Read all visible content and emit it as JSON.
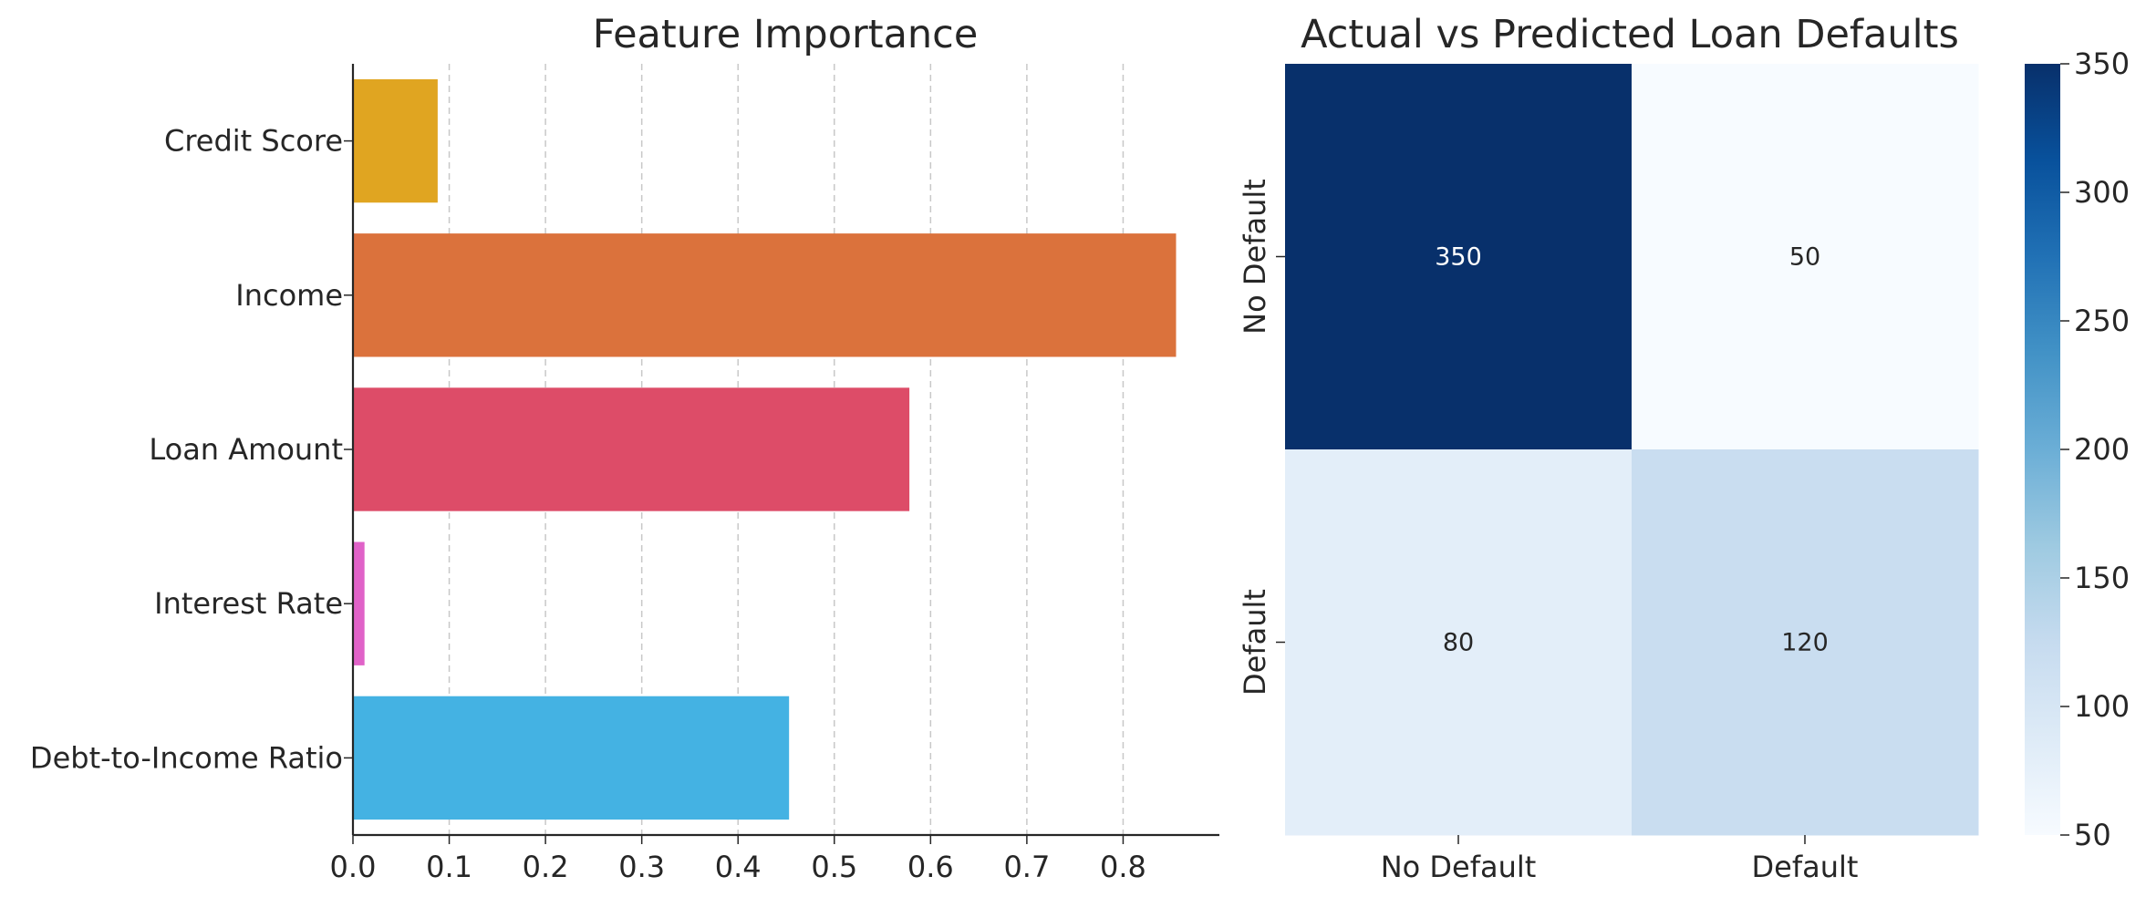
{
  "chart_data": [
    {
      "type": "bar",
      "orientation": "horizontal",
      "title": "Feature Importance",
      "xlabel": "",
      "ylabel": "",
      "categories": [
        "Credit Score",
        "Income",
        "Loan Amount",
        "Interest Rate",
        "Debt-to-Income Ratio"
      ],
      "values": [
        0.088,
        0.855,
        0.578,
        0.012,
        0.453
      ],
      "colors": [
        "#e0a521",
        "#db723c",
        "#dd4c68",
        "#e062c8",
        "#44b2e3"
      ],
      "xlim": [
        0,
        0.9
      ],
      "xticks": [
        0.0,
        0.1,
        0.2,
        0.3,
        0.4,
        0.5,
        0.6,
        0.7,
        0.8
      ],
      "xtick_labels": [
        "0.0",
        "0.1",
        "0.2",
        "0.3",
        "0.4",
        "0.5",
        "0.6",
        "0.7",
        "0.8"
      ],
      "grid": "vertical dashed"
    },
    {
      "type": "heatmap",
      "title": "Actual vs Predicted Loan Defaults",
      "xlabel": "",
      "ylabel": "",
      "x_categories": [
        "No Default",
        "Default"
      ],
      "y_categories": [
        "No Default",
        "Default"
      ],
      "values": [
        [
          350,
          50
        ],
        [
          80,
          120
        ]
      ],
      "colormap": "Blues",
      "colorbar": {
        "min": 50,
        "max": 350,
        "ticks": [
          50,
          100,
          150,
          200,
          250,
          300,
          350
        ],
        "tick_labels": [
          "50",
          "100",
          "150",
          "200",
          "250",
          "300",
          "350"
        ]
      }
    }
  ]
}
